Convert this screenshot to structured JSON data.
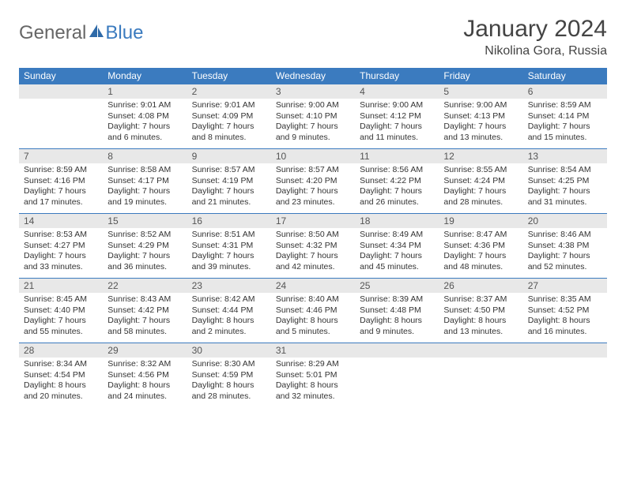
{
  "logo": {
    "general": "General",
    "blue": "Blue"
  },
  "title": "January 2024",
  "location": "Nikolina Gora, Russia",
  "colors": {
    "header_bg": "#3b7bbf",
    "header_fg": "#ffffff",
    "daynum_bg": "#e8e8e8",
    "border": "#3b7bbf",
    "text": "#333333",
    "logo_gray": "#666666",
    "logo_blue": "#3b7bbf"
  },
  "weekdays": [
    "Sunday",
    "Monday",
    "Tuesday",
    "Wednesday",
    "Thursday",
    "Friday",
    "Saturday"
  ],
  "weeks": [
    [
      {
        "n": "",
        "sr": "",
        "ss": "",
        "dl": ""
      },
      {
        "n": "1",
        "sr": "Sunrise: 9:01 AM",
        "ss": "Sunset: 4:08 PM",
        "dl": "Daylight: 7 hours and 6 minutes."
      },
      {
        "n": "2",
        "sr": "Sunrise: 9:01 AM",
        "ss": "Sunset: 4:09 PM",
        "dl": "Daylight: 7 hours and 8 minutes."
      },
      {
        "n": "3",
        "sr": "Sunrise: 9:00 AM",
        "ss": "Sunset: 4:10 PM",
        "dl": "Daylight: 7 hours and 9 minutes."
      },
      {
        "n": "4",
        "sr": "Sunrise: 9:00 AM",
        "ss": "Sunset: 4:12 PM",
        "dl": "Daylight: 7 hours and 11 minutes."
      },
      {
        "n": "5",
        "sr": "Sunrise: 9:00 AM",
        "ss": "Sunset: 4:13 PM",
        "dl": "Daylight: 7 hours and 13 minutes."
      },
      {
        "n": "6",
        "sr": "Sunrise: 8:59 AM",
        "ss": "Sunset: 4:14 PM",
        "dl": "Daylight: 7 hours and 15 minutes."
      }
    ],
    [
      {
        "n": "7",
        "sr": "Sunrise: 8:59 AM",
        "ss": "Sunset: 4:16 PM",
        "dl": "Daylight: 7 hours and 17 minutes."
      },
      {
        "n": "8",
        "sr": "Sunrise: 8:58 AM",
        "ss": "Sunset: 4:17 PM",
        "dl": "Daylight: 7 hours and 19 minutes."
      },
      {
        "n": "9",
        "sr": "Sunrise: 8:57 AM",
        "ss": "Sunset: 4:19 PM",
        "dl": "Daylight: 7 hours and 21 minutes."
      },
      {
        "n": "10",
        "sr": "Sunrise: 8:57 AM",
        "ss": "Sunset: 4:20 PM",
        "dl": "Daylight: 7 hours and 23 minutes."
      },
      {
        "n": "11",
        "sr": "Sunrise: 8:56 AM",
        "ss": "Sunset: 4:22 PM",
        "dl": "Daylight: 7 hours and 26 minutes."
      },
      {
        "n": "12",
        "sr": "Sunrise: 8:55 AM",
        "ss": "Sunset: 4:24 PM",
        "dl": "Daylight: 7 hours and 28 minutes."
      },
      {
        "n": "13",
        "sr": "Sunrise: 8:54 AM",
        "ss": "Sunset: 4:25 PM",
        "dl": "Daylight: 7 hours and 31 minutes."
      }
    ],
    [
      {
        "n": "14",
        "sr": "Sunrise: 8:53 AM",
        "ss": "Sunset: 4:27 PM",
        "dl": "Daylight: 7 hours and 33 minutes."
      },
      {
        "n": "15",
        "sr": "Sunrise: 8:52 AM",
        "ss": "Sunset: 4:29 PM",
        "dl": "Daylight: 7 hours and 36 minutes."
      },
      {
        "n": "16",
        "sr": "Sunrise: 8:51 AM",
        "ss": "Sunset: 4:31 PM",
        "dl": "Daylight: 7 hours and 39 minutes."
      },
      {
        "n": "17",
        "sr": "Sunrise: 8:50 AM",
        "ss": "Sunset: 4:32 PM",
        "dl": "Daylight: 7 hours and 42 minutes."
      },
      {
        "n": "18",
        "sr": "Sunrise: 8:49 AM",
        "ss": "Sunset: 4:34 PM",
        "dl": "Daylight: 7 hours and 45 minutes."
      },
      {
        "n": "19",
        "sr": "Sunrise: 8:47 AM",
        "ss": "Sunset: 4:36 PM",
        "dl": "Daylight: 7 hours and 48 minutes."
      },
      {
        "n": "20",
        "sr": "Sunrise: 8:46 AM",
        "ss": "Sunset: 4:38 PM",
        "dl": "Daylight: 7 hours and 52 minutes."
      }
    ],
    [
      {
        "n": "21",
        "sr": "Sunrise: 8:45 AM",
        "ss": "Sunset: 4:40 PM",
        "dl": "Daylight: 7 hours and 55 minutes."
      },
      {
        "n": "22",
        "sr": "Sunrise: 8:43 AM",
        "ss": "Sunset: 4:42 PM",
        "dl": "Daylight: 7 hours and 58 minutes."
      },
      {
        "n": "23",
        "sr": "Sunrise: 8:42 AM",
        "ss": "Sunset: 4:44 PM",
        "dl": "Daylight: 8 hours and 2 minutes."
      },
      {
        "n": "24",
        "sr": "Sunrise: 8:40 AM",
        "ss": "Sunset: 4:46 PM",
        "dl": "Daylight: 8 hours and 5 minutes."
      },
      {
        "n": "25",
        "sr": "Sunrise: 8:39 AM",
        "ss": "Sunset: 4:48 PM",
        "dl": "Daylight: 8 hours and 9 minutes."
      },
      {
        "n": "26",
        "sr": "Sunrise: 8:37 AM",
        "ss": "Sunset: 4:50 PM",
        "dl": "Daylight: 8 hours and 13 minutes."
      },
      {
        "n": "27",
        "sr": "Sunrise: 8:35 AM",
        "ss": "Sunset: 4:52 PM",
        "dl": "Daylight: 8 hours and 16 minutes."
      }
    ],
    [
      {
        "n": "28",
        "sr": "Sunrise: 8:34 AM",
        "ss": "Sunset: 4:54 PM",
        "dl": "Daylight: 8 hours and 20 minutes."
      },
      {
        "n": "29",
        "sr": "Sunrise: 8:32 AM",
        "ss": "Sunset: 4:56 PM",
        "dl": "Daylight: 8 hours and 24 minutes."
      },
      {
        "n": "30",
        "sr": "Sunrise: 8:30 AM",
        "ss": "Sunset: 4:59 PM",
        "dl": "Daylight: 8 hours and 28 minutes."
      },
      {
        "n": "31",
        "sr": "Sunrise: 8:29 AM",
        "ss": "Sunset: 5:01 PM",
        "dl": "Daylight: 8 hours and 32 minutes."
      },
      {
        "n": "",
        "sr": "",
        "ss": "",
        "dl": ""
      },
      {
        "n": "",
        "sr": "",
        "ss": "",
        "dl": ""
      },
      {
        "n": "",
        "sr": "",
        "ss": "",
        "dl": ""
      }
    ]
  ]
}
